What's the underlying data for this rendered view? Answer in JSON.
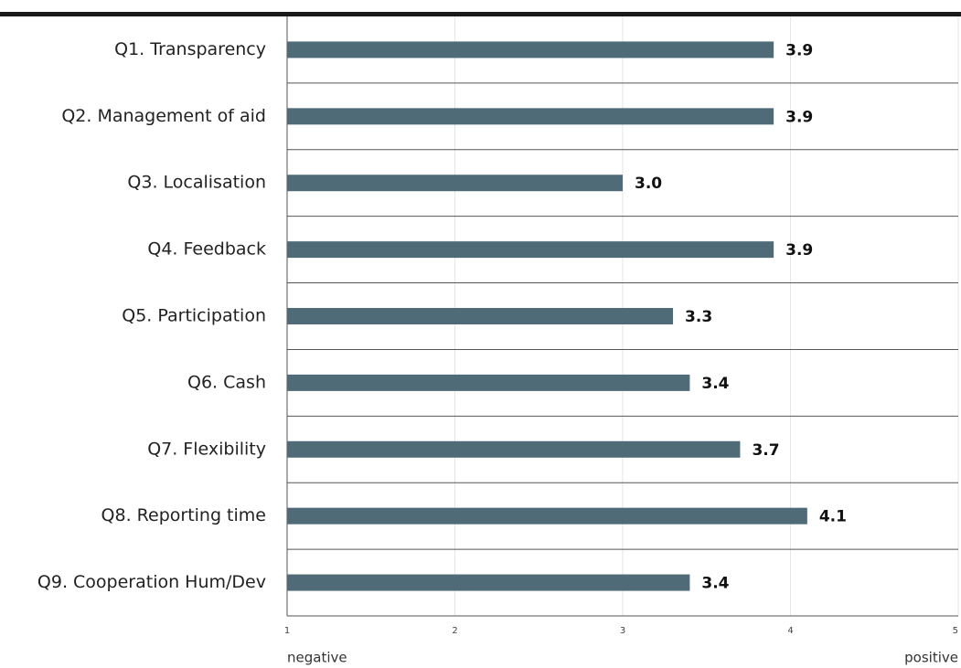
{
  "chart_data": {
    "type": "hbar",
    "categories": [
      "Q1. Transparency",
      "Q2. Management of aid",
      "Q3. Localisation",
      "Q4. Feedback",
      "Q5. Participation",
      "Q6. Cash",
      "Q7. Flexibility",
      "Q8. Reporting time",
      "Q9. Cooperation Hum/Dev"
    ],
    "values": [
      3.9,
      3.9,
      3.0,
      3.9,
      3.3,
      3.4,
      3.7,
      4.1,
      3.4
    ],
    "value_labels": [
      "3.9",
      "3.9",
      "3.0",
      "3.9",
      "3.3",
      "3.4",
      "3.7",
      "4.1",
      "3.4"
    ],
    "color": "#4f6b78",
    "xlim": [
      1,
      5
    ],
    "xticks": [
      1,
      2,
      3,
      4,
      5
    ],
    "grid": true,
    "xlabel_left": "negative",
    "xlabel_right": "positive"
  }
}
